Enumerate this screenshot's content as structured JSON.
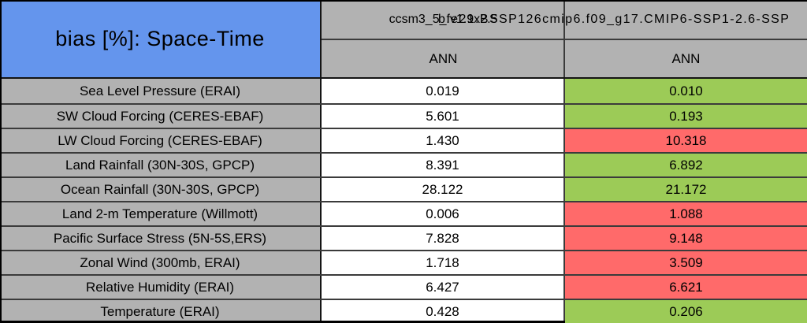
{
  "table": {
    "title": "bias [%]: Space-Time",
    "column_headers": [
      {
        "model": "ccsm3_5_fv1.9x2.5",
        "season": "ANN"
      },
      {
        "model": "b.e21.BSSP126cmip6.f09_g17.CMIP6-SSP1-2.6-SSP",
        "season": "ANN"
      }
    ],
    "rows": [
      {
        "label": "Sea Level Pressure (ERAI)",
        "values": [
          "0.019",
          "0.010"
        ],
        "cell_colors": [
          "white",
          "green"
        ]
      },
      {
        "label": "SW Cloud Forcing (CERES-EBAF)",
        "values": [
          "5.601",
          "0.193"
        ],
        "cell_colors": [
          "white",
          "green"
        ]
      },
      {
        "label": "LW Cloud Forcing (CERES-EBAF)",
        "values": [
          "1.430",
          "10.318"
        ],
        "cell_colors": [
          "white",
          "red"
        ]
      },
      {
        "label": "Land Rainfall (30N-30S, GPCP)",
        "values": [
          "8.391",
          "6.892"
        ],
        "cell_colors": [
          "white",
          "green"
        ]
      },
      {
        "label": "Ocean Rainfall (30N-30S, GPCP)",
        "values": [
          "28.122",
          "21.172"
        ],
        "cell_colors": [
          "white",
          "green"
        ]
      },
      {
        "label": "Land 2-m Temperature (Willmott)",
        "values": [
          "0.006",
          "1.088"
        ],
        "cell_colors": [
          "white",
          "red"
        ]
      },
      {
        "label": "Pacific Surface Stress (5N-5S,ERS)",
        "values": [
          "7.828",
          "9.148"
        ],
        "cell_colors": [
          "white",
          "red"
        ]
      },
      {
        "label": "Zonal Wind (300mb, ERAI)",
        "values": [
          "1.718",
          "3.509"
        ],
        "cell_colors": [
          "white",
          "red"
        ]
      },
      {
        "label": "Relative Humidity (ERAI)",
        "values": [
          "6.427",
          "6.621"
        ],
        "cell_colors": [
          "white",
          "red"
        ]
      },
      {
        "label": "Temperature (ERAI)",
        "values": [
          "0.428",
          "0.206"
        ],
        "cell_colors": [
          "white",
          "green"
        ]
      }
    ]
  },
  "colors": {
    "accent_blue": "#6495ED",
    "header_gray": "#B2B2B2",
    "border_dark": "#141414",
    "border_gray": "#3B3B3B",
    "cell": {
      "white": "#FFFFFF",
      "green": "#9CCB57",
      "red": "#FF6A6A"
    }
  },
  "chart_data": {
    "type": "table",
    "title": "bias [%]: Space-Time",
    "row_labels": [
      "Sea Level Pressure (ERAI)",
      "SW Cloud Forcing (CERES-EBAF)",
      "LW Cloud Forcing (CERES-EBAF)",
      "Land Rainfall (30N-30S, GPCP)",
      "Ocean Rainfall (30N-30S, GPCP)",
      "Land 2-m Temperature (Willmott)",
      "Pacific Surface Stress (5N-5S,ERS)",
      "Zonal Wind (300mb, ERAI)",
      "Relative Humidity (ERAI)",
      "Temperature (ERAI)"
    ],
    "series": [
      {
        "name": "ccsm3_5_fv1.9x2.5",
        "season": "ANN",
        "values": [
          0.019,
          5.601,
          1.43,
          8.391,
          28.122,
          0.006,
          7.828,
          1.718,
          6.427,
          0.428
        ],
        "cell_colors": [
          "white",
          "white",
          "white",
          "white",
          "white",
          "white",
          "white",
          "white",
          "white",
          "white"
        ]
      },
      {
        "name": "b.e21.BSSP126cmip6.f09_g17.CMIP6-SSP1-2.6-SSP",
        "season": "ANN",
        "values": [
          0.01,
          0.193,
          10.318,
          6.892,
          21.172,
          1.088,
          9.148,
          3.509,
          6.621,
          0.206
        ],
        "cell_colors": [
          "green",
          "green",
          "red",
          "green",
          "green",
          "red",
          "red",
          "red",
          "red",
          "green"
        ]
      }
    ]
  }
}
